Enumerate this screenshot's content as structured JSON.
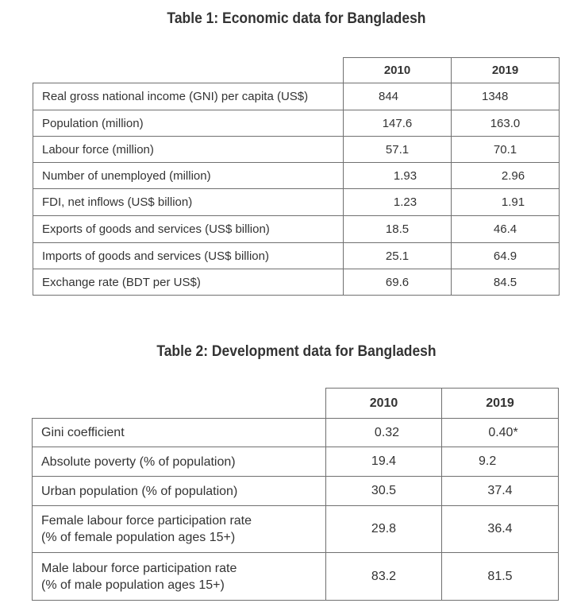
{
  "table1": {
    "title": "Table 1: Economic data for Bangladesh",
    "columns": [
      "2010",
      "2019"
    ],
    "rows": [
      {
        "label": "Real gross national income (GNI) per capita (US$)",
        "v2010": "844",
        "v2019": "1348"
      },
      {
        "label": "Population (million)",
        "v2010": "147.6",
        "v2019": "163.0"
      },
      {
        "label": "Labour force (million)",
        "v2010": "57.1",
        "v2019": "70.1"
      },
      {
        "label": "Number of unemployed (million)",
        "v2010": "1.93",
        "v2019": "2.96"
      },
      {
        "label": "FDI, net inflows (US$ billion)",
        "v2010": "1.23",
        "v2019": "1.91"
      },
      {
        "label": "Exports of goods and services (US$ billion)",
        "v2010": "18.5",
        "v2019": "46.4"
      },
      {
        "label": "Imports of goods and services (US$ billion)",
        "v2010": "25.1",
        "v2019": "64.9"
      },
      {
        "label": "Exchange rate (BDT per US$)",
        "v2010": "69.6",
        "v2019": "84.5"
      }
    ]
  },
  "table2": {
    "title": "Table 2: Development data for Bangladesh",
    "columns": [
      "2010",
      "2019"
    ],
    "rows": [
      {
        "label": "Gini coefficient",
        "v2010": "0.32",
        "v2019": "0.40*"
      },
      {
        "label": "Absolute poverty (% of population)",
        "v2010": "19.4",
        "v2019": "9.2"
      },
      {
        "label": "Urban population (% of population)",
        "v2010": "30.5",
        "v2019": "37.4"
      },
      {
        "label": "Female labour force participation rate",
        "label2": "(% of female population ages 15+)",
        "v2010": "29.8",
        "v2019": "36.4"
      },
      {
        "label": "Male labour force participation rate",
        "label2": "(% of male population ages 15+)",
        "v2010": "83.2",
        "v2019": "81.5"
      }
    ]
  }
}
